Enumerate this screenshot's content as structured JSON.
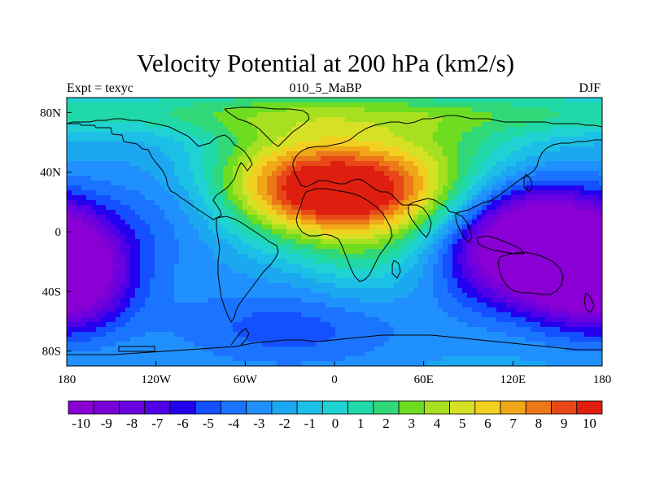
{
  "chart_data": {
    "type": "heatmap",
    "title": "Velocity Potential at 200 hPa (km2/s)",
    "subtitle_left": "Expt = texyc",
    "subtitle_center": "010_5_MaBP",
    "subtitle_right": "DJF",
    "xlim": [
      -180,
      180
    ],
    "ylim": [
      -90,
      90
    ],
    "x_ticks": [
      -180,
      -120,
      -60,
      0,
      60,
      120,
      180
    ],
    "x_tick_labels": [
      "180",
      "120W",
      "60W",
      "0",
      "60E",
      "120E",
      "180"
    ],
    "y_ticks": [
      80,
      40,
      0,
      -40,
      -80
    ],
    "y_tick_labels": [
      "80N",
      "40N",
      "0",
      "40S",
      "80S"
    ],
    "colorbar_labels": [
      "-10",
      "-9",
      "-8",
      "-7",
      "-6",
      "-5",
      "-4",
      "-3",
      "-2",
      "-1",
      "0",
      "1",
      "2",
      "3",
      "4",
      "5",
      "6",
      "7",
      "8",
      "9",
      "10"
    ],
    "value_range": [
      -10,
      10
    ],
    "field_centers": [
      {
        "lon": 10,
        "lat": 25,
        "value": 11
      },
      {
        "lon": 130,
        "lat": -8,
        "value": -11
      },
      {
        "lon": -170,
        "lat": -30,
        "value": -10
      }
    ],
    "grid": false
  }
}
